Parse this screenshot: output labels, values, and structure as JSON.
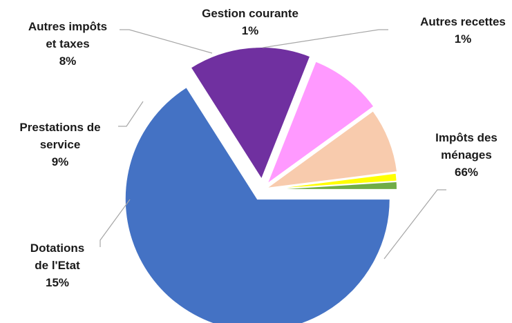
{
  "chart_data": {
    "type": "pie",
    "title": "",
    "slices": [
      {
        "label_lines": [
          "Impôts des",
          "ménages"
        ],
        "value": 66,
        "value_text": "66%",
        "color": "#4472C4"
      },
      {
        "label_lines": [
          "Dotations",
          "de l'Etat"
        ],
        "value": 15,
        "value_text": "15%",
        "color": "#7030A0"
      },
      {
        "label_lines": [
          "Prestations de",
          "service"
        ],
        "value": 9,
        "value_text": "9%",
        "color": "#FF99FF"
      },
      {
        "label_lines": [
          "Autres impôts",
          "et taxes"
        ],
        "value": 8,
        "value_text": "8%",
        "color": "#F8CBAD"
      },
      {
        "label_lines": [
          "Gestion courante"
        ],
        "value": 1,
        "value_text": "1%",
        "color": "#FFFF00"
      },
      {
        "label_lines": [
          "Autres recettes"
        ],
        "value": 1,
        "value_text": "1%",
        "color": "#70AD47"
      }
    ],
    "legend": "none",
    "labels": "outside with leader lines"
  }
}
